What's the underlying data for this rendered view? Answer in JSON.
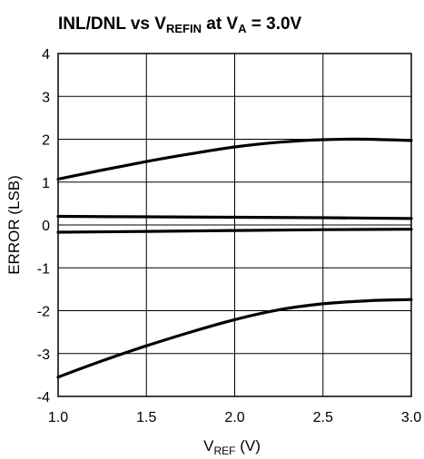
{
  "chart_data": {
    "type": "line",
    "title": {
      "main": "INL/DNL vs V",
      "sub1": "REFIN",
      "mid": " at V",
      "sub2": "A",
      "tail": " = 3.0V"
    },
    "xlabel": {
      "main": "V",
      "sub": "REF",
      "tail": " (V)"
    },
    "ylabel": "ERROR (LSB)",
    "xlim": [
      1.0,
      3.0
    ],
    "ylim": [
      -4,
      4
    ],
    "xticks": [
      1.0,
      1.5,
      2.0,
      2.5,
      3.0
    ],
    "xtick_labels": [
      "1.0",
      "1.5",
      "2.0",
      "2.5",
      "3.0"
    ],
    "yticks": [
      -4,
      -3,
      -2,
      -1,
      0,
      1,
      2,
      3,
      4
    ],
    "ytick_labels": [
      "-4",
      "-3",
      "-2",
      "-1",
      "0",
      "1",
      "2",
      "3",
      "4"
    ],
    "grid": true,
    "series": [
      {
        "x": [
          1.0,
          1.25,
          1.5,
          1.75,
          2.0,
          2.25,
          2.5,
          2.75,
          3.0
        ],
        "values": [
          1.07,
          1.28,
          1.48,
          1.66,
          1.82,
          1.93,
          1.99,
          2.0,
          1.97
        ]
      },
      {
        "x": [
          1.0,
          1.5,
          2.0,
          2.5,
          3.0
        ],
        "values": [
          0.2,
          0.19,
          0.18,
          0.17,
          0.15
        ]
      },
      {
        "x": [
          1.0,
          1.5,
          2.0,
          2.5,
          3.0
        ],
        "values": [
          -0.17,
          -0.15,
          -0.13,
          -0.11,
          -0.1
        ]
      },
      {
        "x": [
          1.0,
          1.25,
          1.5,
          1.75,
          2.0,
          2.25,
          2.5,
          2.75,
          3.0
        ],
        "values": [
          -3.55,
          -3.17,
          -2.82,
          -2.5,
          -2.21,
          -1.98,
          -1.84,
          -1.77,
          -1.74
        ]
      }
    ]
  }
}
